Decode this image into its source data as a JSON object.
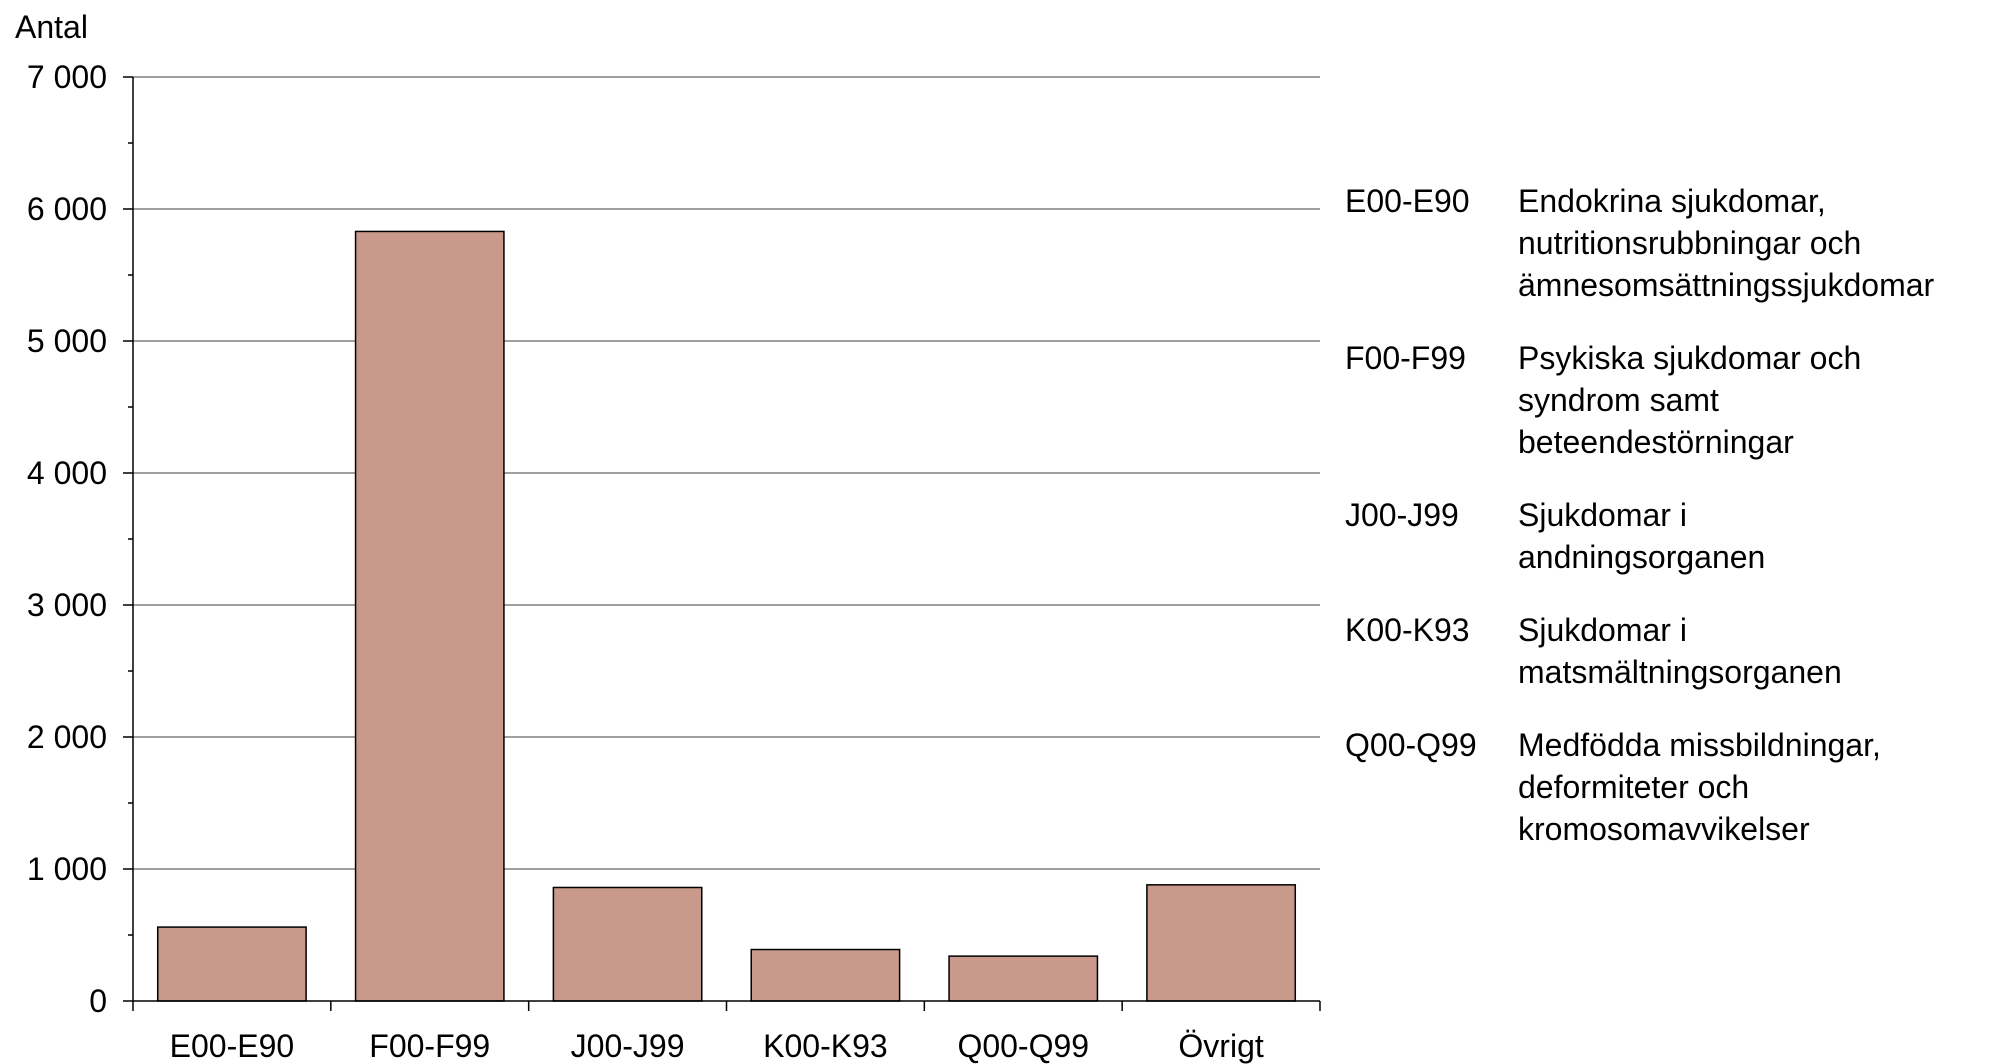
{
  "chart_data": {
    "type": "bar",
    "ylabel": "Antal",
    "xlabel": "",
    "categories": [
      "E00-E90",
      "F00-F99",
      "J00-J99",
      "K00-K93",
      "Q00-Q99",
      "Övrigt"
    ],
    "values": [
      560,
      5830,
      860,
      390,
      340,
      880
    ],
    "ylim": [
      0,
      7000
    ],
    "yticks": [
      0,
      1000,
      2000,
      3000,
      4000,
      5000,
      6000,
      7000
    ],
    "ytick_labels": [
      "0",
      "1 000",
      "2 000",
      "3 000",
      "4 000",
      "5 000",
      "6 000",
      "7 000"
    ],
    "grid": true,
    "bar_color": "#c99a8b",
    "legend_placement": "right",
    "legend": [
      {
        "code": "E00-E90",
        "lines": [
          "Endokrina sjukdomar,",
          "nutritionsrubbningar och",
          "ämnesomsättningssjukdomar"
        ]
      },
      {
        "code": "F00-F99",
        "lines": [
          "Psykiska sjukdomar och",
          "syndrom samt",
          "beteendestörningar"
        ]
      },
      {
        "code": "J00-J99",
        "lines": [
          "Sjukdomar i",
          "andningsorganen"
        ]
      },
      {
        "code": "K00-K93",
        "lines": [
          "Sjukdomar i",
          "matsmältningsorganen"
        ]
      },
      {
        "code": "Q00-Q99",
        "lines": [
          "Medfödda missbildningar,",
          "deformiteter och",
          "kromosomavvikelser"
        ]
      }
    ]
  }
}
